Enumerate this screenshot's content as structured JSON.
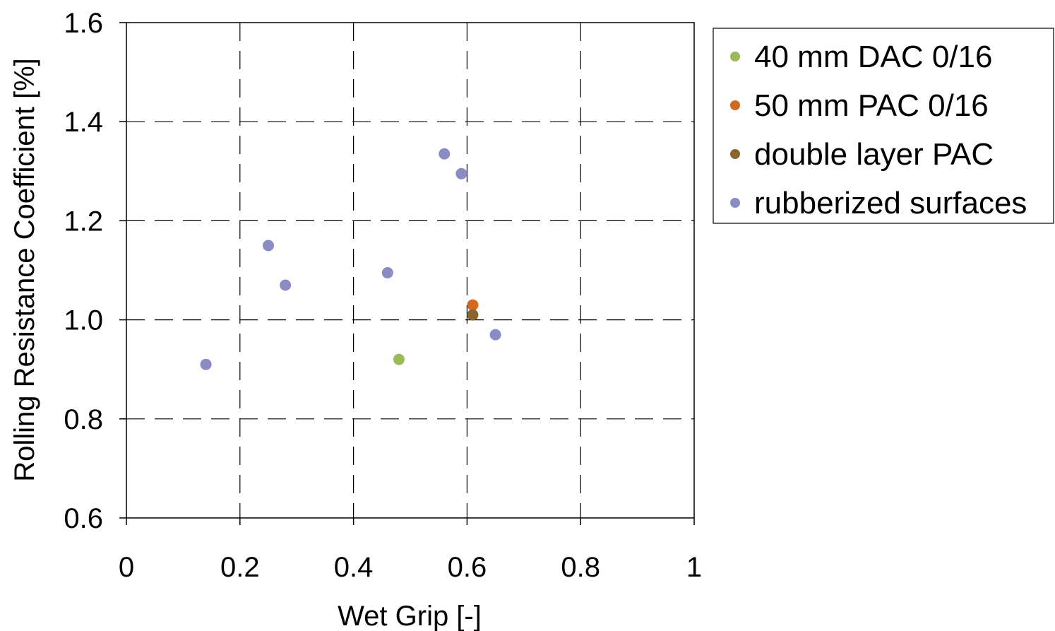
{
  "chart_data": {
    "type": "scatter",
    "title": "",
    "xlabel": "Wet Grip [-]",
    "ylabel": "Rolling Resistance Coefficient [%]",
    "xlim": [
      0,
      1
    ],
    "ylim": [
      0.6,
      1.6
    ],
    "x_ticks": [
      "0",
      "0.2",
      "0.4",
      "0.6",
      "0.8",
      "1"
    ],
    "y_ticks": [
      "0.6",
      "0.8",
      "1.0",
      "1.2",
      "1.4",
      "1.6"
    ],
    "grid": "dashed",
    "legend_position": "right",
    "series": [
      {
        "name": "40 mm DAC 0/16",
        "color": "#9BBB59",
        "points": [
          [
            0.48,
            0.92
          ]
        ]
      },
      {
        "name": "50 mm PAC 0/16",
        "color": "#D2691E",
        "points": [
          [
            0.61,
            1.03
          ]
        ]
      },
      {
        "name": "double layer PAC",
        "color": "#8B6530",
        "points": [
          [
            0.61,
            1.01
          ]
        ]
      },
      {
        "name": "rubberized surfaces",
        "color": "#8C8CC4",
        "points": [
          [
            0.14,
            0.91
          ],
          [
            0.25,
            1.15
          ],
          [
            0.28,
            1.07
          ],
          [
            0.46,
            1.095
          ],
          [
            0.56,
            1.335
          ],
          [
            0.59,
            1.295
          ],
          [
            0.65,
            0.97
          ]
        ]
      }
    ]
  }
}
